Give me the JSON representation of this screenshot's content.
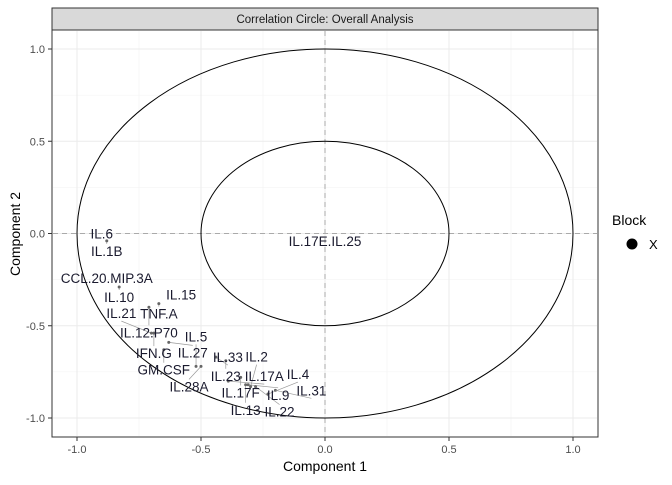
{
  "chart_data": {
    "type": "scatter",
    "title": "Correlation Circle: Overall Analysis",
    "xlabel": "Component  1",
    "ylabel": "Component  2",
    "xlim": [
      -1.1,
      1.1
    ],
    "ylim": [
      -1.1,
      1.1
    ],
    "xticks": [
      -1.0,
      -0.5,
      0.0,
      0.5,
      1.0
    ],
    "yticks": [
      -1.0,
      -0.5,
      0.0,
      0.5,
      1.0
    ],
    "xtick_labels": [
      "-1.0",
      "-0.5",
      "0.0",
      "0.5",
      "1.0"
    ],
    "ytick_labels": [
      "-1.0",
      "-0.5",
      "0.0",
      "0.5",
      "1.0"
    ],
    "circles": [
      1.0,
      0.5
    ],
    "grid": true,
    "legend": {
      "title": "Block",
      "entries": [
        "X"
      ],
      "placement": "right"
    },
    "label_color": "#1a1a2e",
    "points": [
      {
        "label": "IL.6",
        "x": -0.9,
        "y": 0.0
      },
      {
        "label": "IL.1B",
        "x": -0.88,
        "y": -0.04
      },
      {
        "label": "CCL.20.MIP.3A",
        "x": -0.88,
        "y": -0.24
      },
      {
        "label": "IL.10",
        "x": -0.83,
        "y": -0.29
      },
      {
        "label": "IL.15",
        "x": -0.58,
        "y": -0.33
      },
      {
        "label": "TNF.A",
        "x": -0.67,
        "y": -0.38
      },
      {
        "label": "IL.12.P70",
        "x": -0.71,
        "y": -0.4
      },
      {
        "label": "IFN.G",
        "x": -0.69,
        "y": -0.54
      },
      {
        "label": "IL.21",
        "x": -0.7,
        "y": -0.54
      },
      {
        "label": "IL.27",
        "x": -0.63,
        "y": -0.59
      },
      {
        "label": "GM.CSF",
        "x": -0.65,
        "y": -0.63
      },
      {
        "label": "IL.33",
        "x": -0.44,
        "y": -0.67
      },
      {
        "label": "IL.23",
        "x": -0.4,
        "y": -0.69
      },
      {
        "label": "IL.28A",
        "x": -0.5,
        "y": -0.72
      },
      {
        "label": "IL.5",
        "x": -0.52,
        "y": -0.72
      },
      {
        "label": "IL.17F",
        "x": -0.34,
        "y": -0.78
      },
      {
        "label": "IL.17A",
        "x": -0.39,
        "y": -0.8
      },
      {
        "label": "IL.13",
        "x": -0.32,
        "y": -0.82
      },
      {
        "label": "IL.9",
        "x": -0.31,
        "y": -0.82
      },
      {
        "label": "IL.22",
        "x": -0.28,
        "y": -0.83
      },
      {
        "label": "IL.2",
        "x": -0.3,
        "y": -0.83
      },
      {
        "label": "IL.31",
        "x": -0.2,
        "y": -0.85
      },
      {
        "label": "IL.4",
        "x": -0.23,
        "y": -0.87
      },
      {
        "label": "IL.17E.IL.25",
        "x": 0.0,
        "y": -0.04
      }
    ]
  }
}
